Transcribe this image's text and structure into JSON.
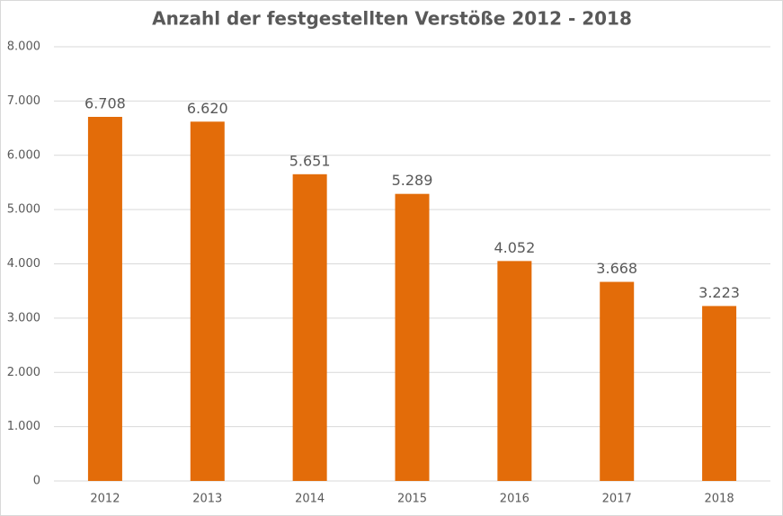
{
  "chart_data": {
    "type": "bar",
    "title": "Anzahl der festgestellten Verstöße 2012 - 2018",
    "categories": [
      "2012",
      "2013",
      "2014",
      "2015",
      "2016",
      "2017",
      "2018"
    ],
    "values": [
      6708,
      6620,
      5651,
      5289,
      4052,
      3668,
      3223
    ],
    "value_labels": [
      "6.708",
      "6.620",
      "5.651",
      "5.289",
      "4.052",
      "3.668",
      "3.223"
    ],
    "color": "#e36c09",
    "ylim": [
      0,
      8000
    ],
    "yticks": [
      0,
      {
        "value": 1000,
        "label": "1.000"
      },
      {
        "value": 2000,
        "label": "2.000"
      },
      {
        "value": 3000,
        "label": "3.000"
      },
      {
        "value": 4000,
        "label": "4.000"
      },
      {
        "value": 5000,
        "label": "5.000"
      },
      {
        "value": 6000,
        "label": "6.000"
      },
      {
        "value": 7000,
        "label": "7.000"
      },
      {
        "value": 8000,
        "label": "8.000"
      }
    ],
    "grid": true
  }
}
